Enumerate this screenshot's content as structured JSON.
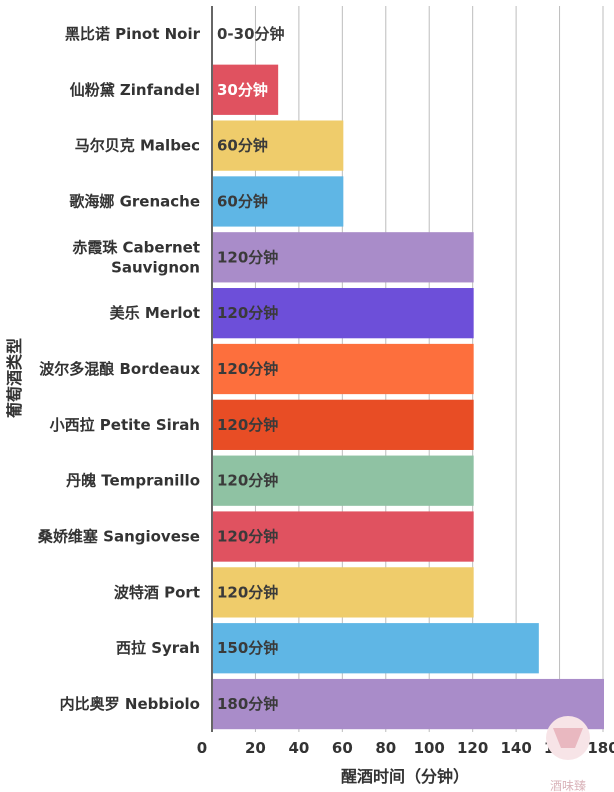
{
  "chart_data": {
    "type": "bar",
    "orientation": "horizontal",
    "categories": [
      "黑比诺 Pinot Noir",
      "仙粉黛 Zinfandel",
      "马尔贝克 Malbec",
      "歌海娜 Grenache",
      "赤霞珠 Cabernet Sauvignon",
      "美乐 Merlot",
      "波尔多混酿 Bordeaux",
      "小西拉 Petite Sirah",
      "丹魄 Tempranillo",
      "桑娇维塞 Sangiovese",
      "波特酒 Port",
      "西拉 Syrah",
      "内比奥罗 Nebbiolo"
    ],
    "values": [
      0,
      30,
      60,
      60,
      120,
      120,
      120,
      120,
      120,
      120,
      120,
      150,
      180
    ],
    "data_labels": [
      "0-30分钟",
      "30分钟",
      "60分钟",
      "60分钟",
      "120分钟",
      "120分钟",
      "120分钟",
      "120分钟",
      "120分钟",
      "120分钟",
      "120分钟",
      "150分钟",
      "180分钟"
    ],
    "colors": [
      "#ffffff",
      "#e05260",
      "#efcc6b",
      "#5fb6e5",
      "#a98cc9",
      "#6d4fd9",
      "#fd6f3d",
      "#e84d25",
      "#8fc2a3",
      "#e05260",
      "#efcc6b",
      "#5fb6e5",
      "#a98cc9"
    ],
    "xlabel": "醒酒时间（分钟）",
    "ylabel": "葡萄酒类型",
    "x_ticks": [
      "0",
      "20",
      "40",
      "60",
      "80",
      "100",
      "120",
      "140",
      "160",
      "180"
    ],
    "xlim": [
      0,
      180
    ],
    "grid": true
  },
  "watermark": "酒味臻"
}
